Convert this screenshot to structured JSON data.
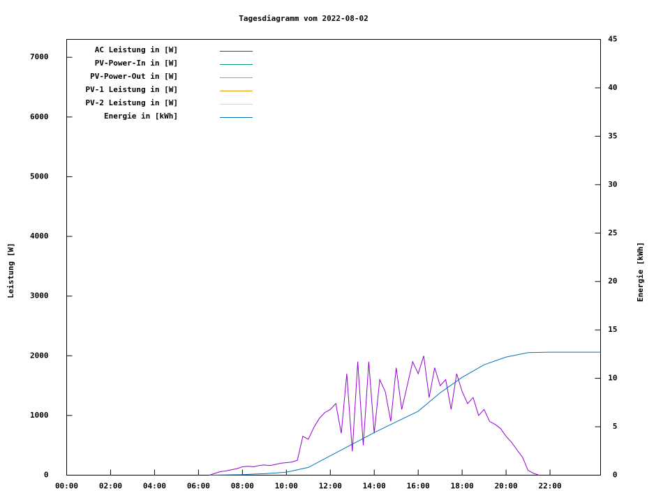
{
  "chart_data": {
    "type": "line",
    "title": "Tagesdiagramm vom 2022-08-02",
    "ylabel": "Leistung [W]",
    "y2label": "Energie [kWh]",
    "xlim": [
      0,
      24.3
    ],
    "ylim": [
      0,
      7300
    ],
    "y2lim": [
      0,
      45
    ],
    "xticks": [
      {
        "value": 0,
        "label": "00:00"
      },
      {
        "value": 2,
        "label": "02:00"
      },
      {
        "value": 4,
        "label": "04:00"
      },
      {
        "value": 6,
        "label": "06:00"
      },
      {
        "value": 8,
        "label": "08:00"
      },
      {
        "value": 10,
        "label": "10:00"
      },
      {
        "value": 12,
        "label": "12:00"
      },
      {
        "value": 14,
        "label": "14:00"
      },
      {
        "value": 16,
        "label": "16:00"
      },
      {
        "value": 18,
        "label": "18:00"
      },
      {
        "value": 20,
        "label": "20:00"
      },
      {
        "value": 22,
        "label": "22:00"
      }
    ],
    "yticks": [
      0,
      1000,
      2000,
      3000,
      4000,
      5000,
      6000,
      7000
    ],
    "y2ticks": [
      0,
      5,
      10,
      15,
      20,
      25,
      30,
      35,
      40,
      45
    ],
    "legend": "top-left",
    "series": [
      {
        "name": "AC Leistung in [W]",
        "color": "#9400d3",
        "x": [
          6.5,
          6.75,
          7,
          7.25,
          7.5,
          7.75,
          8,
          8.25,
          8.5,
          8.75,
          9,
          9.25,
          9.5,
          9.75,
          10,
          10.25,
          10.5,
          10.75,
          11,
          11.25,
          11.5,
          11.75,
          12,
          12.25,
          12.5,
          12.75,
          13,
          13.25,
          13.5,
          13.75,
          14,
          14.25,
          14.5,
          14.75,
          15,
          15.25,
          15.5,
          15.75,
          16,
          16.25,
          16.5,
          16.75,
          17,
          17.25,
          17.5,
          17.75,
          18,
          18.25,
          18.5,
          18.75,
          19,
          19.25,
          19.5,
          19.75,
          20,
          20.25,
          20.5,
          20.75,
          21,
          21.25,
          21.5
        ],
        "values": [
          0,
          30,
          60,
          70,
          90,
          110,
          140,
          150,
          140,
          160,
          170,
          160,
          180,
          200,
          210,
          220,
          250,
          650,
          600,
          800,
          950,
          1050,
          1100,
          1200,
          700,
          1700,
          400,
          1900,
          500,
          1900,
          700,
          1600,
          1400,
          900,
          1800,
          1100,
          1500,
          1900,
          1700,
          2000,
          1300,
          1800,
          1500,
          1600,
          1100,
          1700,
          1400,
          1200,
          1300,
          1000,
          1100,
          900,
          850,
          780,
          650,
          550,
          420,
          300,
          80,
          30,
          0
        ]
      },
      {
        "name": "PV-Power-In in [W]",
        "color": "#009e73",
        "x": [],
        "values": []
      },
      {
        "name": "PV-Power-Out in [W]",
        "color": "#56b4e9",
        "x": [],
        "values": []
      },
      {
        "name": "PV-1 Leistung in [W]",
        "color": "#e69f00",
        "x": [],
        "values": []
      },
      {
        "name": "PV-2 Leistung in [W]",
        "color": "#f0e442",
        "x": [],
        "values": []
      },
      {
        "name": "Energie in [kWh]",
        "color": "#0072b2",
        "axis": "y2",
        "x": [
          6.5,
          8,
          9,
          10,
          11,
          12,
          13,
          14,
          15,
          16,
          17,
          18,
          19,
          20,
          21,
          22,
          24.3
        ],
        "values": [
          0,
          0.05,
          0.15,
          0.3,
          0.8,
          2.0,
          3.2,
          4.4,
          5.5,
          6.6,
          8.5,
          10.1,
          11.4,
          12.2,
          12.65,
          12.7,
          12.7
        ]
      }
    ]
  }
}
